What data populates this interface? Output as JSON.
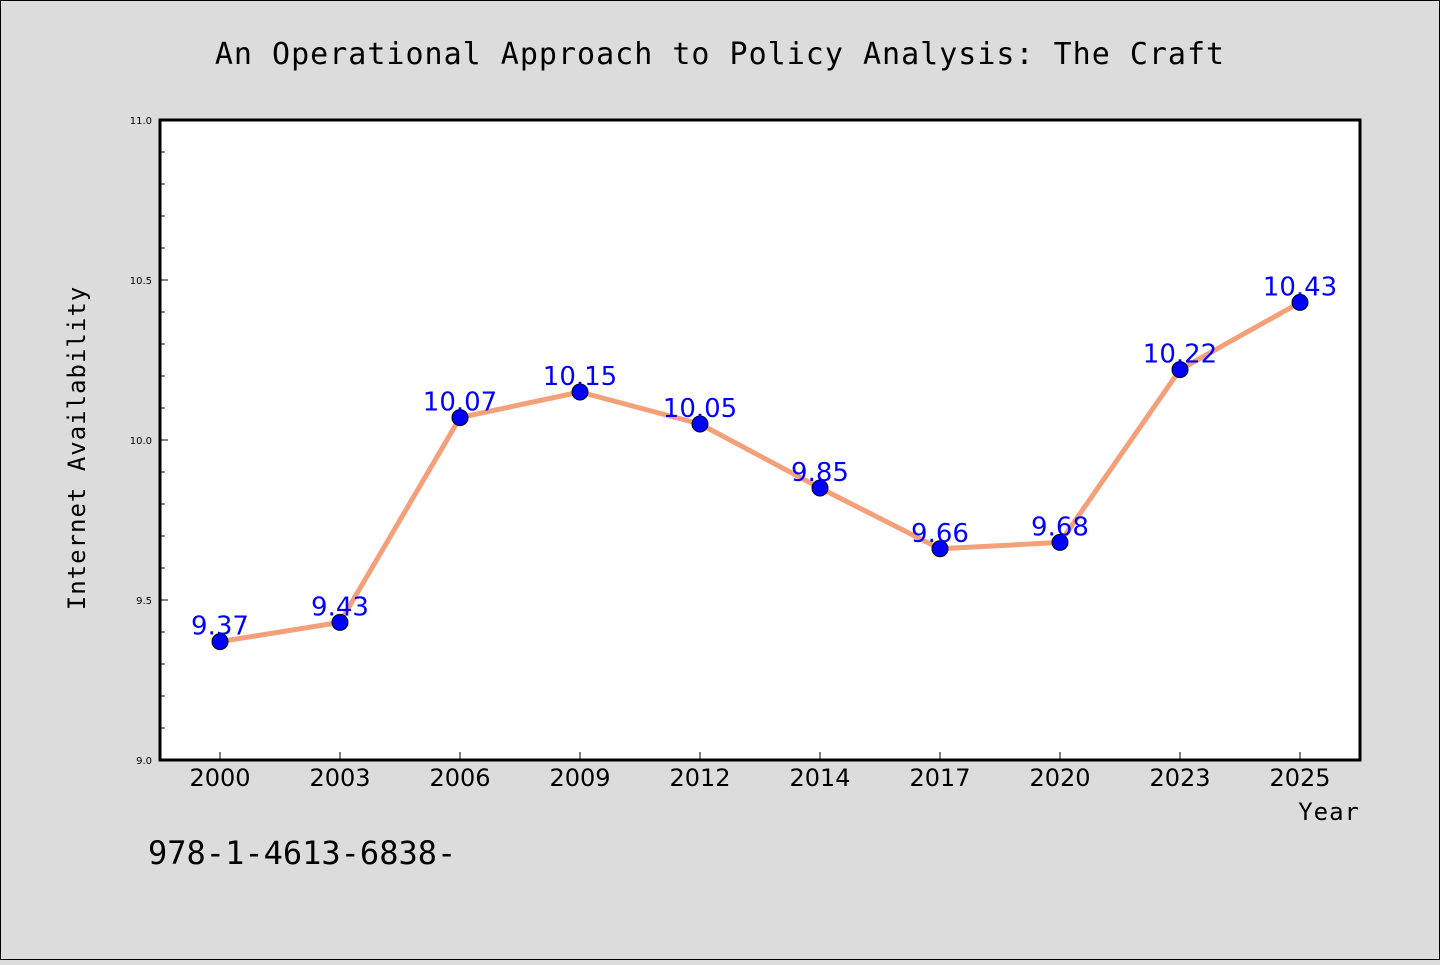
{
  "chart_data": {
    "type": "line",
    "title": "An Operational Approach to Policy Analysis: The Craft",
    "xlabel": "Year",
    "ylabel": "Internet Availability",
    "categories": [
      "2000",
      "2003",
      "2006",
      "2009",
      "2012",
      "2014",
      "2017",
      "2020",
      "2023",
      "2025"
    ],
    "series": [
      {
        "values": [
          9.37,
          9.43,
          10.07,
          10.15,
          10.05,
          9.85,
          9.66,
          9.68,
          10.22,
          10.43
        ],
        "data_labels": [
          "9.37",
          "9.43",
          "10.07",
          "10.15",
          "10.05",
          "9.85",
          "9.66",
          "9.68",
          "10.22",
          "10.43"
        ]
      }
    ],
    "ylim": [
      9.0,
      11.0
    ],
    "yticks": [
      9.0,
      9.5,
      10.0,
      10.5,
      11.0
    ],
    "ytick_labels": [
      "9.0",
      "9.5",
      "10.0",
      "10.5",
      "11.0"
    ],
    "grid": false,
    "legend": "none",
    "colors": {
      "line": "#f4a07a",
      "marker": "#0000ff",
      "label": "#0000ff",
      "plot_bg": "#ffffff",
      "figure_bg": "#dcdcdc"
    }
  },
  "footer_text": "978-1-4613-6838-"
}
